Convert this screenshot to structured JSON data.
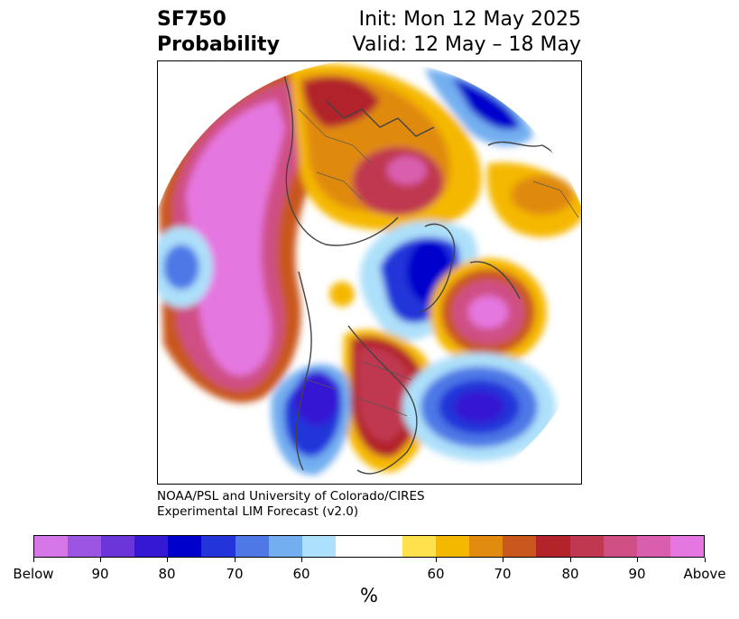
{
  "header": {
    "title_line1": "SF750",
    "title_line2": "Probability",
    "init": "Init: Mon 12 May 2025",
    "valid": "Valid: 12 May – 18 May"
  },
  "credit": {
    "line1": "NOAA/PSL and University of Colorado/CIRES",
    "line2": "Experimental LIM Forecast (v2.0)"
  },
  "colorbar": {
    "colors": [
      "#d577e6",
      "#9b55e0",
      "#6a35d9",
      "#3418d3",
      "#0000cc",
      "#2335d9",
      "#4d78e6",
      "#73aff0",
      "#ade0fa",
      "#ffffff",
      "#ffffff",
      "#ffe14d",
      "#f5b800",
      "#e08a0e",
      "#c9561c",
      "#b2242a",
      "#c0384f",
      "#cf4f85",
      "#d95fae",
      "#e577e0"
    ],
    "labels": [
      "Below",
      "90",
      "80",
      "70",
      "60",
      "60",
      "70",
      "80",
      "90",
      "Above"
    ],
    "unit": "%"
  }
}
